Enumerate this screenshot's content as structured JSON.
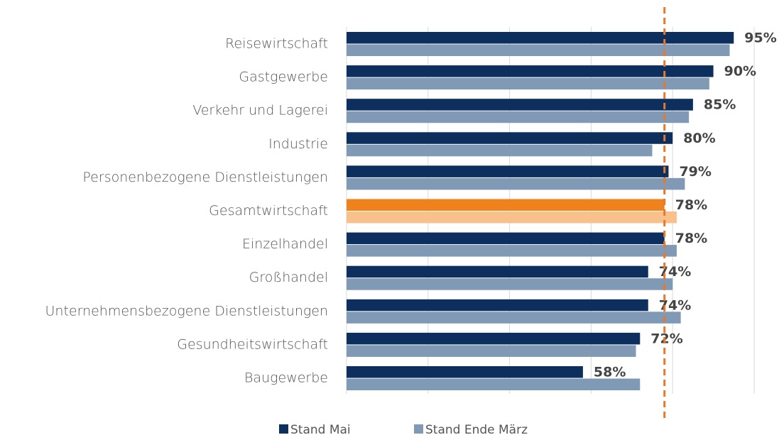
{
  "chart_data": {
    "type": "hbar",
    "categories": [
      "Reisewirtschaft",
      "Gastgewerbe",
      "Verkehr und Lagerei",
      "Industrie",
      "Personenbezogene Dienstleistungen",
      "Gesamtwirtschaft",
      "Einzelhandel",
      "Großhandel",
      "Unternehmensbezogene Dienstleistungen",
      "Gesundheitswirtschaft",
      "Baugewerbe"
    ],
    "series": [
      {
        "name": "Stand Mai",
        "color": "#0d2f5e",
        "values": [
          95,
          90,
          85,
          80,
          79,
          78,
          78,
          74,
          74,
          72,
          58
        ],
        "value_labels": [
          "95%",
          "90%",
          "85%",
          "80%",
          "79%",
          "78%",
          "78%",
          "74%",
          "74%",
          "72%",
          "58%"
        ]
      },
      {
        "name": "Stand Ende März",
        "color": "#8099b5",
        "values": [
          94,
          89,
          84,
          75,
          83,
          81,
          81,
          80,
          82,
          71,
          72
        ]
      }
    ],
    "highlight_index": 5,
    "highlight_colors": [
      "#f0821e",
      "#f8c08a"
    ],
    "reference_line": {
      "value": 78,
      "color": "#e8782a"
    },
    "xlim": [
      0,
      100
    ],
    "xticks": [
      0,
      20,
      40,
      60,
      80,
      100
    ],
    "grid": true,
    "legend": "bottom"
  }
}
